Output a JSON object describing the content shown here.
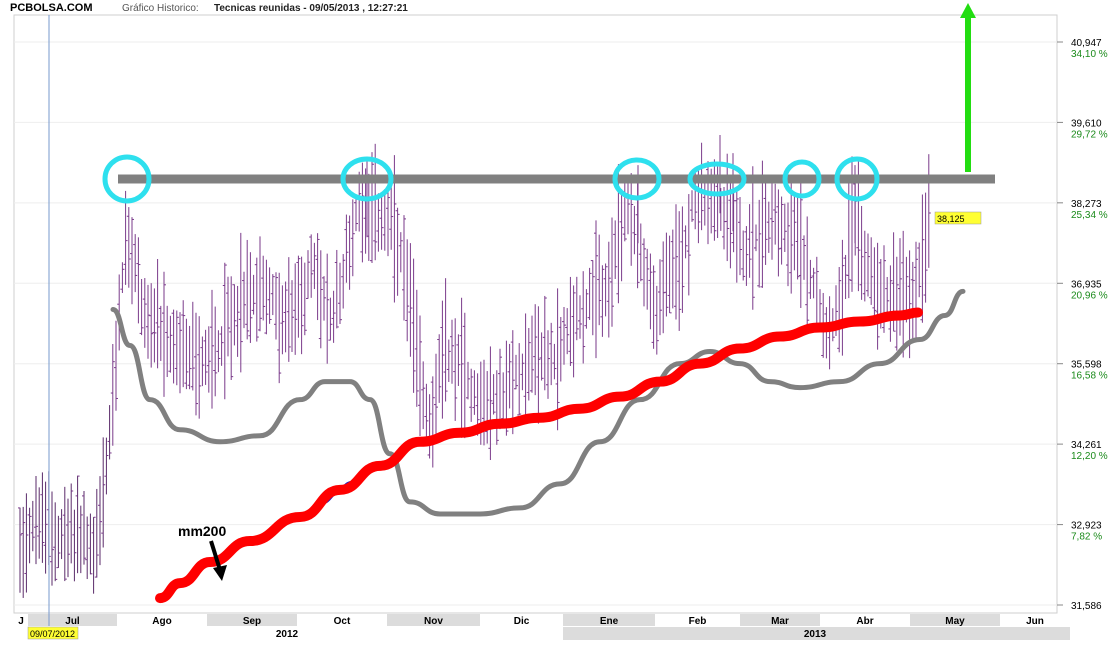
{
  "header": {
    "site": "PCBOLSA.COM",
    "label": "Gráfico Historico:",
    "title": "Tecnicas reunidas - 09/05/2013 , 12:27:21"
  },
  "chart_data": {
    "type": "candlestick",
    "ylim": [
      31.586,
      41.5
    ],
    "y_ticks": [
      {
        "value": 40.947,
        "label": "40,947",
        "pct": "34,10 %"
      },
      {
        "value": 39.61,
        "label": "39,610",
        "pct": "29,72 %"
      },
      {
        "value": 38.273,
        "label": "38,273",
        "pct": "25,34 %"
      },
      {
        "value": 36.935,
        "label": "36,935",
        "pct": "20,96 %"
      },
      {
        "value": 35.598,
        "label": "35,598",
        "pct": "16,58 %"
      },
      {
        "value": 34.261,
        "label": "34,261",
        "pct": "12,20 %"
      },
      {
        "value": 32.923,
        "label": "32,923",
        "pct": "7,82 %"
      },
      {
        "value": 31.586,
        "label": "31,586",
        "pct": ""
      }
    ],
    "months": [
      "J",
      "Jul",
      "Ago",
      "Sep",
      "Oct",
      "Nov",
      "Dic",
      "Ene",
      "Feb",
      "Mar",
      "Abr",
      "May",
      "Jun"
    ],
    "years": [
      "2012",
      "2013"
    ],
    "start_date": "09/07/2012",
    "last_price": "38,125",
    "last_price_value": 38.125,
    "resistance_level": 38.67,
    "annotation": "mm200",
    "colors": {
      "price_bars": "#7a3a8a",
      "ma200": "#ff0000",
      "ma_short": "#808080",
      "resistance": "#808080",
      "circles": "#2ee0ee",
      "target_arrow": "#22dd11",
      "last_price_bg": "#ffff33"
    },
    "series": [
      {
        "name": "mm200",
        "role": "moving-average-200"
      },
      {
        "role": "short-moving-average"
      }
    ]
  }
}
